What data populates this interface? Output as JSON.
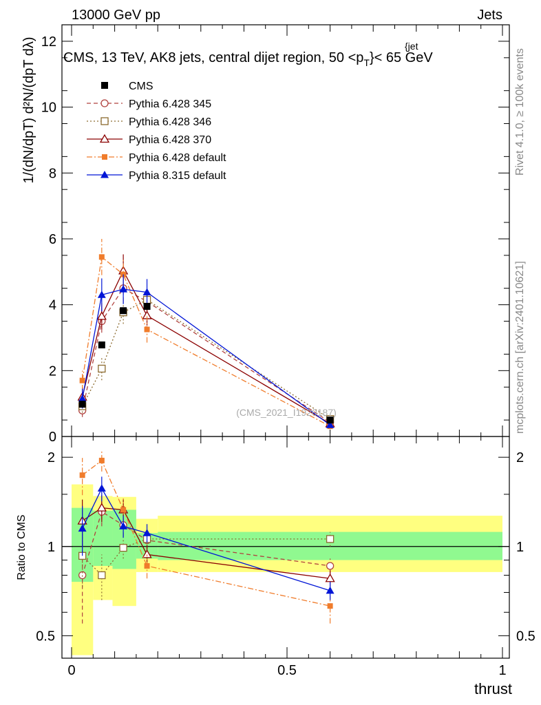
{
  "header": {
    "energy_label": "13000 GeV pp",
    "process_label": "Jets"
  },
  "side_labels": {
    "rivet": "Rivet 4.1.0, ≥ 100k events",
    "mcplots": "mcplots.cern.ch [arXiv:2401.10621]"
  },
  "chart_data": {
    "type": "line",
    "title": "CMS, 13 TeV, AK8 jets, central dijet region, 50 <p",
    "title_sup": "{jet",
    "title_sub": "T",
    "title_tail": "}< 65 GeV",
    "watermark": "(CMS_2021_I1920187)",
    "xlabel": "thrust",
    "ylabel_main": "1/(dN/dpT) d²N/(dpT dλ)",
    "ylabel_ratio": "Ratio to CMS",
    "xlim": [
      0,
      1
    ],
    "ylim_main": [
      0,
      12.5
    ],
    "ylim_ratio_log": [
      0.42,
      2.35
    ],
    "x_ticks": [
      "0",
      "0.5",
      "1"
    ],
    "y_ticks_main": [
      "0",
      "2",
      "4",
      "6",
      "8",
      "10",
      "12"
    ],
    "y_ticks_ratio": [
      "0.5",
      "1",
      "2"
    ],
    "legend_position": "top-left",
    "x": [
      0.025,
      0.07,
      0.12,
      0.175,
      0.6
    ],
    "data": {
      "name": "CMS",
      "values": [
        0.98,
        2.78,
        3.82,
        3.95,
        0.5
      ],
      "ratio_band_inner": [
        [
          0,
          0.05,
          0.76,
          1.35
        ],
        [
          0.05,
          0.095,
          0.86,
          1.32
        ],
        [
          0.095,
          0.15,
          0.84,
          1.33
        ],
        [
          0.15,
          0.2,
          0.91,
          1.11
        ],
        [
          0.2,
          1,
          0.9,
          1.12
        ]
      ],
      "ratio_band_outer": [
        [
          0,
          0.05,
          0.43,
          1.62
        ],
        [
          0.05,
          0.095,
          0.66,
          1.48
        ],
        [
          0.095,
          0.15,
          0.63,
          1.47
        ],
        [
          0.15,
          0.2,
          0.82,
          1.24
        ],
        [
          0.2,
          1,
          0.82,
          1.27
        ]
      ]
    },
    "series": [
      {
        "name": "Pythia 6.428 345",
        "color": "#b0413e",
        "dash": "6,4",
        "marker": "circle-open",
        "values": [
          0.79,
          3.5,
          4.5,
          4.1,
          0.43
        ],
        "errors": [
          0.2,
          0.35,
          0.4,
          0.3,
          0.05
        ],
        "ratio": [
          0.8,
          1.31,
          1.18,
          1.05,
          0.86
        ],
        "ratio_err": [
          0.25,
          0.14,
          0.1,
          0.07,
          0.05
        ]
      },
      {
        "name": "Pythia 6.428 346",
        "color": "#8b6a2e",
        "dash": "2,3",
        "marker": "square-open",
        "values": [
          0.92,
          2.06,
          3.77,
          4.15,
          0.53
        ],
        "errors": [
          0.2,
          0.35,
          0.35,
          0.3,
          0.05
        ],
        "ratio": [
          0.93,
          0.8,
          0.99,
          1.06,
          1.06
        ],
        "ratio_err": [
          0.2,
          0.14,
          0.08,
          0.07,
          0.06
        ]
      },
      {
        "name": "Pythia 6.428 370",
        "color": "#8b0000",
        "dash": "",
        "marker": "triangle-open",
        "values": [
          1.2,
          3.65,
          5.03,
          3.67,
          0.39
        ],
        "errors": [
          0.3,
          0.4,
          0.5,
          0.3,
          0.05
        ],
        "ratio": [
          1.22,
          1.35,
          1.33,
          0.94,
          0.78
        ],
        "ratio_err": [
          0.22,
          0.14,
          0.12,
          0.07,
          0.05
        ]
      },
      {
        "name": "Pythia 6.428 default",
        "color": "#f07c2b",
        "dash": "8,3,2,3",
        "marker": "square-filled",
        "values": [
          1.7,
          5.45,
          4.92,
          3.25,
          0.31
        ],
        "errors": [
          0.3,
          0.55,
          0.5,
          0.4,
          0.05
        ],
        "ratio": [
          1.74,
          1.95,
          1.33,
          0.86,
          0.63
        ],
        "ratio_err": [
          0.25,
          0.16,
          0.12,
          0.08,
          0.08
        ]
      },
      {
        "name": "Pythia 8.315 default",
        "color": "#0015d6",
        "dash": "",
        "marker": "triangle-filled",
        "values": [
          1.15,
          4.3,
          4.47,
          4.38,
          0.35
        ],
        "errors": [
          0.3,
          0.5,
          0.45,
          0.4,
          0.05
        ],
        "ratio": [
          1.15,
          1.57,
          1.17,
          1.11,
          0.71
        ],
        "ratio_err": [
          0.22,
          0.15,
          0.1,
          0.08,
          0.05
        ]
      }
    ]
  }
}
